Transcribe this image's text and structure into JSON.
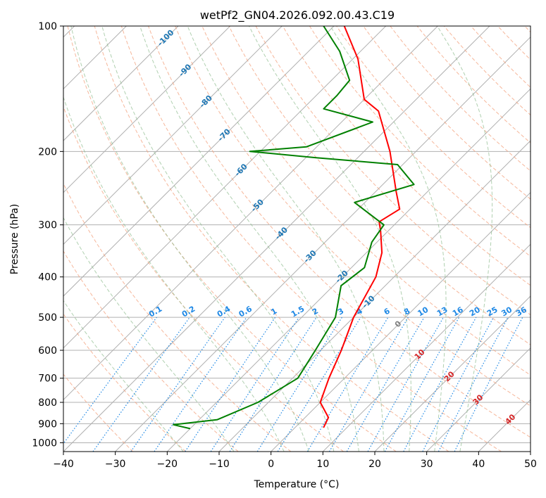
{
  "chart_data": {
    "type": "skew-t",
    "title": "wetPf2_GN04.2026.092.00.43.C19",
    "xlabel": "Temperature (°C)",
    "ylabel": "Pressure (hPa)",
    "xlim": [
      -40,
      50
    ],
    "ylim": [
      1050,
      100
    ],
    "x_scale": "linear (skewed 45°)",
    "y_scale": "log",
    "grid": true,
    "x_ticks": [
      -40,
      -30,
      -20,
      -10,
      0,
      10,
      20,
      30,
      40,
      50
    ],
    "x_tick_labels": [
      "−40",
      "−30",
      "−20",
      "−10",
      "0",
      "10",
      "20",
      "30",
      "40",
      "50"
    ],
    "y_ticks": [
      100,
      200,
      300,
      400,
      500,
      600,
      700,
      800,
      900,
      1000
    ],
    "y_tick_labels": [
      "100",
      "200",
      "300",
      "400",
      "500",
      "600",
      "700",
      "800",
      "900",
      "1000"
    ],
    "series": [
      {
        "kind": "temperature",
        "color": "#ff0000",
        "points": [
          {
            "p": 920,
            "t": 5.5
          },
          {
            "p": 870,
            "t": 4.5
          },
          {
            "p": 800,
            "t": 0.0
          },
          {
            "p": 700,
            "t": -3.0
          },
          {
            "p": 600,
            "t": -6.0
          },
          {
            "p": 500,
            "t": -10.0
          },
          {
            "p": 400,
            "t": -13.5
          },
          {
            "p": 350,
            "t": -17.0
          },
          {
            "p": 310,
            "t": -21.5
          },
          {
            "p": 295,
            "t": -23.5
          },
          {
            "p": 275,
            "t": -22.0
          },
          {
            "p": 250,
            "t": -26.0
          },
          {
            "p": 200,
            "t": -35.0
          },
          {
            "p": 160,
            "t": -45.0
          },
          {
            "p": 150,
            "t": -50.0
          },
          {
            "p": 120,
            "t": -59.0
          },
          {
            "p": 100,
            "t": -68.0
          }
        ]
      },
      {
        "kind": "dewpoint",
        "color": "#008000",
        "points": [
          {
            "p": 925,
            "t": -20.0
          },
          {
            "p": 905,
            "t": -24.0
          },
          {
            "p": 880,
            "t": -16.5
          },
          {
            "p": 800,
            "t": -12.0
          },
          {
            "p": 700,
            "t": -9.0
          },
          {
            "p": 600,
            "t": -11.0
          },
          {
            "p": 500,
            "t": -13.5
          },
          {
            "p": 420,
            "t": -18.5
          },
          {
            "p": 380,
            "t": -17.5
          },
          {
            "p": 330,
            "t": -21.0
          },
          {
            "p": 300,
            "t": -22.0
          },
          {
            "p": 265,
            "t": -32.0
          },
          {
            "p": 240,
            "t": -24.0
          },
          {
            "p": 215,
            "t": -31.0
          },
          {
            "p": 207,
            "t": -48.0
          },
          {
            "p": 200,
            "t": -62.0
          },
          {
            "p": 195,
            "t": -52.0
          },
          {
            "p": 170,
            "t": -44.0
          },
          {
            "p": 158,
            "t": -56.0
          },
          {
            "p": 147,
            "t": -56.0
          },
          {
            "p": 135,
            "t": -56.5
          },
          {
            "p": 115,
            "t": -64.0
          },
          {
            "p": 100,
            "t": -72.0
          }
        ]
      }
    ],
    "dry_adiabats": [
      -30,
      -20,
      -10,
      0,
      10,
      20,
      30,
      40,
      50,
      60,
      70,
      80,
      90,
      100,
      110,
      120,
      130,
      140,
      150,
      160,
      170,
      180,
      190,
      200,
      210,
      220,
      230
    ],
    "moist_adiabats": [
      -20,
      -10,
      0,
      5,
      10,
      15,
      20,
      25,
      30,
      35
    ],
    "mixing_ratio_labels": [
      "0.1",
      "0.2",
      "0.4",
      "0.6",
      "1",
      "1.5",
      "2",
      "3",
      "4",
      "6",
      "8",
      "10",
      "13",
      "16",
      "20",
      "25",
      "30",
      "36"
    ],
    "isotherm_labels_blue": [
      "-100",
      "-90",
      "-80",
      "-70",
      "-60",
      "-50",
      "-40",
      "-30",
      "-20",
      "-10"
    ],
    "isotherm_labels_grey": [
      "0"
    ],
    "isotherm_labels_red": [
      "10",
      "20",
      "30",
      "40"
    ],
    "colors": {
      "temperature": "#ff0000",
      "dewpoint": "#008000",
      "dry_adiabat": "#f4a582",
      "moist_adiabat": "#8fbc8f",
      "mixing_ratio": "#1e88e5",
      "isotherm_label_blue": "#1f77b4",
      "isotherm_label_red": "#d62728",
      "isotherm_label_grey": "#808080",
      "isotherm": "#b0b0b0",
      "isobar": "#b0b0b0"
    }
  }
}
